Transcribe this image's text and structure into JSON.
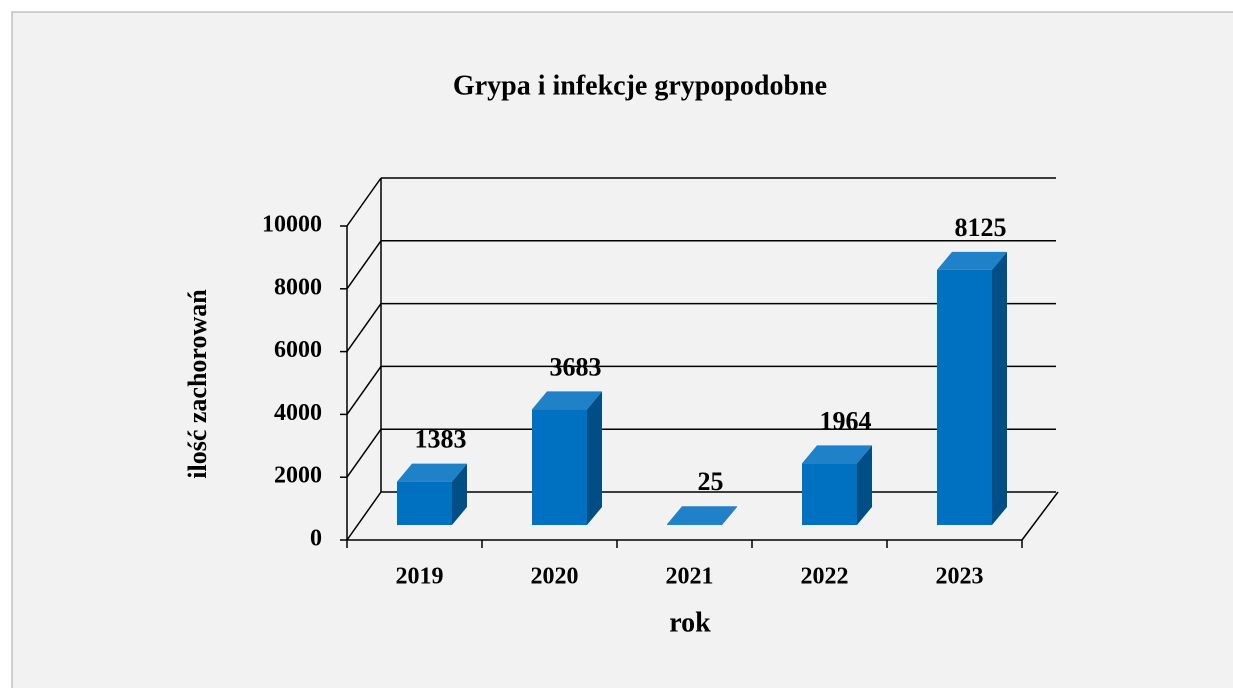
{
  "chart_data": {
    "type": "bar3d",
    "title": "Grypa i infekcje grypopodobne",
    "x_label": "rok",
    "y_label": "ilość zachorowań",
    "categories": [
      "2019",
      "2020",
      "2021",
      "2022",
      "2023"
    ],
    "values": [
      1383,
      3683,
      25,
      1964,
      8125
    ],
    "color": "#0070c0",
    "ylim": [
      0,
      10000
    ],
    "yticks": [
      0,
      2000,
      4000,
      6000,
      8000,
      10000
    ],
    "grid": true
  }
}
